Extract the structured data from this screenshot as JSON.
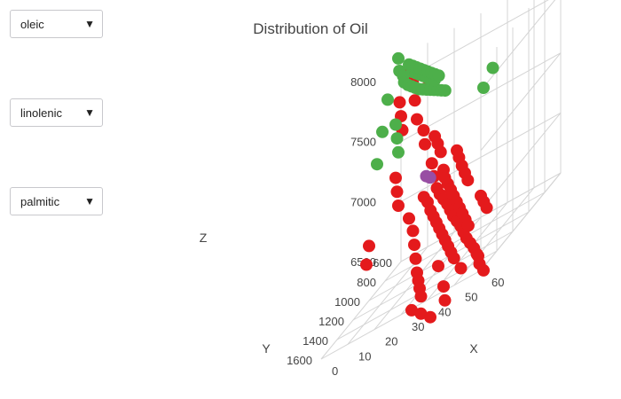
{
  "controls": {
    "x_select": {
      "value": "oleic"
    },
    "y_select": {
      "value": "linolenic"
    },
    "z_select": {
      "value": "palmitic"
    },
    "arrow_icon": "triangle-down-icon"
  },
  "chart_data": {
    "type": "scatter",
    "title": "Distribution of Oil",
    "xlabel": "X",
    "ylabel": "Y",
    "zlabel": "Z",
    "x_ticks": [
      "0",
      "10",
      "20",
      "30",
      "40",
      "50",
      "60"
    ],
    "y_ticks": [
      "600",
      "800",
      "1000",
      "1200",
      "1400",
      "1600"
    ],
    "z_ticks": [
      "6500",
      "7000",
      "7500",
      "8000"
    ],
    "xlim": [
      0,
      60
    ],
    "ylim": [
      600,
      1600
    ],
    "zlim": [
      6500,
      8200
    ],
    "grid": true,
    "series": [
      {
        "color": "#e41a1c",
        "points": [
          [
            5,
            700,
            8100
          ],
          [
            8,
            720,
            8000
          ],
          [
            10,
            760,
            7850
          ],
          [
            12,
            800,
            7700
          ],
          [
            14,
            760,
            7900
          ],
          [
            16,
            850,
            7600
          ],
          [
            18,
            900,
            7500
          ],
          [
            20,
            880,
            7300
          ],
          [
            22,
            920,
            7200
          ],
          [
            24,
            950,
            7100
          ],
          [
            26,
            980,
            7050
          ],
          [
            28,
            1000,
            7000
          ],
          [
            30,
            1020,
            6950
          ],
          [
            32,
            1050,
            6900
          ],
          [
            34,
            1080,
            6850
          ],
          [
            36,
            1100,
            6800
          ],
          [
            38,
            1120,
            6750
          ],
          [
            40,
            1150,
            6700
          ],
          [
            42,
            1180,
            6650
          ],
          [
            44,
            1200,
            6600
          ],
          [
            46,
            1220,
            6550
          ],
          [
            48,
            1250,
            6500
          ],
          [
            15,
            1000,
            7000
          ],
          [
            18,
            1050,
            6900
          ],
          [
            20,
            1100,
            6800
          ],
          [
            22,
            1150,
            6700
          ],
          [
            24,
            1200,
            6600
          ],
          [
            26,
            1250,
            6550
          ],
          [
            28,
            1300,
            6500
          ],
          [
            30,
            1350,
            6450
          ],
          [
            25,
            900,
            7200
          ],
          [
            27,
            950,
            7150
          ],
          [
            29,
            980,
            7100
          ],
          [
            31,
            1010,
            7050
          ],
          [
            33,
            1040,
            7000
          ],
          [
            35,
            1070,
            6950
          ],
          [
            37,
            1100,
            6900
          ],
          [
            39,
            1130,
            6850
          ],
          [
            41,
            1160,
            6800
          ],
          [
            43,
            1190,
            6750
          ],
          [
            20,
            980,
            7100
          ],
          [
            22,
            1000,
            7050
          ],
          [
            24,
            1030,
            6980
          ],
          [
            26,
            1060,
            6930
          ],
          [
            28,
            1090,
            6880
          ],
          [
            30,
            1120,
            6830
          ],
          [
            32,
            1150,
            6780
          ],
          [
            34,
            1180,
            6730
          ],
          [
            36,
            1210,
            6680
          ],
          [
            38,
            1240,
            6630
          ],
          [
            40,
            1270,
            6580
          ],
          [
            10,
            1000,
            7400
          ],
          [
            12,
            1050,
            7300
          ],
          [
            14,
            1100,
            7200
          ],
          [
            50,
            1300,
            6500
          ],
          [
            52,
            1350,
            6450
          ],
          [
            55,
            1400,
            6400
          ],
          [
            45,
            1350,
            6500
          ],
          [
            40,
            1400,
            6450
          ],
          [
            35,
            1300,
            6600
          ],
          [
            8,
            850,
            7700
          ],
          [
            6,
            800,
            7800
          ],
          [
            4,
            750,
            7900
          ],
          [
            30,
            900,
            7300
          ],
          [
            32,
            940,
            7250
          ],
          [
            34,
            970,
            7180
          ],
          [
            36,
            1000,
            7120
          ],
          [
            38,
            1030,
            7060
          ],
          [
            23,
            870,
            7350
          ],
          [
            21,
            840,
            7420
          ],
          [
            19,
            810,
            7480
          ],
          [
            45,
            1100,
            6900
          ],
          [
            47,
            1130,
            6850
          ],
          [
            49,
            1160,
            6800
          ],
          [
            3,
            1100,
            7000
          ],
          [
            5,
            1200,
            6900
          ],
          [
            28,
            1400,
            6400
          ],
          [
            33,
            1450,
            6350
          ],
          [
            38,
            1500,
            6300
          ],
          [
            42,
            1450,
            6350
          ]
        ]
      },
      {
        "color": "#4daf4a",
        "points": [
          [
            2,
            700,
            8250
          ],
          [
            3,
            720,
            8150
          ],
          [
            5,
            740,
            8100
          ],
          [
            6,
            760,
            8050
          ],
          [
            8,
            780,
            8020
          ],
          [
            10,
            800,
            8000
          ],
          [
            12,
            820,
            7980
          ],
          [
            14,
            840,
            7960
          ],
          [
            16,
            860,
            7950
          ],
          [
            18,
            880,
            7940
          ],
          [
            20,
            900,
            7930
          ],
          [
            22,
            920,
            7920
          ],
          [
            24,
            940,
            7910
          ],
          [
            26,
            960,
            7900
          ],
          [
            28,
            980,
            7890
          ],
          [
            9,
            760,
            8100
          ],
          [
            11,
            780,
            8080
          ],
          [
            13,
            800,
            8060
          ],
          [
            15,
            820,
            8040
          ],
          [
            17,
            840,
            8020
          ],
          [
            19,
            860,
            8000
          ],
          [
            21,
            880,
            7980
          ],
          [
            7,
            900,
            7800
          ],
          [
            9,
            950,
            7700
          ],
          [
            11,
            1000,
            7600
          ],
          [
            1,
            800,
            8000
          ],
          [
            2,
            900,
            7800
          ],
          [
            3,
            1000,
            7600
          ],
          [
            40,
            900,
            7700
          ],
          [
            42,
            850,
            7800
          ],
          [
            6,
            700,
            8150
          ],
          [
            8,
            720,
            8130
          ],
          [
            10,
            740,
            8110
          ],
          [
            12,
            760,
            8090
          ],
          [
            14,
            780,
            8070
          ],
          [
            16,
            800,
            8050
          ],
          [
            18,
            820,
            8030
          ],
          [
            20,
            840,
            8010
          ],
          [
            22,
            860,
            7990
          ]
        ]
      },
      {
        "color": "#984ea3",
        "points": [
          [
            20,
            950,
            7250
          ],
          [
            22,
            970,
            7230
          ]
        ]
      }
    ]
  }
}
